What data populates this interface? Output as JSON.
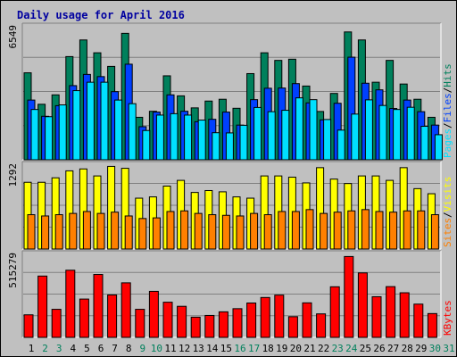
{
  "title": "Daily usage for April 2016",
  "colors": {
    "background": "#c0c0c0",
    "title": "#0000a0",
    "hits": "#00805c",
    "files": "#0040ff",
    "pages": "#00e0ff",
    "visits": "#ffff00",
    "sites": "#ff8000",
    "kbytes": "#ff0000",
    "weekday_label": "#000000",
    "weekend_label": "#00805c",
    "grid": "#808080"
  },
  "chart_data": [
    {
      "type": "bar",
      "name": "hits-files-pages",
      "max_label": "6549",
      "ymax": 6549,
      "right_labels": [
        "Pages",
        "Files",
        "Hits"
      ],
      "x": [
        1,
        2,
        3,
        4,
        5,
        6,
        7,
        8,
        9,
        10,
        11,
        12,
        13,
        14,
        15,
        16,
        17,
        18,
        19,
        20,
        21,
        22,
        23,
        24,
        25,
        26,
        27,
        28,
        29,
        30
      ],
      "series": [
        {
          "name": "Hits",
          "values": [
            4340,
            2770,
            3240,
            5150,
            5980,
            5340,
            4660,
            6310,
            2120,
            2420,
            4190,
            3190,
            2590,
            2930,
            3020,
            2570,
            4300,
            5340,
            4960,
            5020,
            3680,
            2410,
            3310,
            6380,
            5980,
            3870,
            4960,
            3780,
            3020,
            2120
          ]
        },
        {
          "name": "Files",
          "values": [
            2980,
            2170,
            2700,
            3700,
            4260,
            4150,
            3400,
            4770,
            1650,
            2380,
            3240,
            2420,
            1900,
            2020,
            2380,
            1730,
            3000,
            3570,
            3580,
            3800,
            2840,
            1990,
            2820,
            5120,
            3820,
            3490,
            2560,
            2980,
            2400,
            1730
          ]
        },
        {
          "name": "Pages",
          "values": [
            2510,
            2150,
            2740,
            3450,
            3870,
            3870,
            2980,
            2800,
            1460,
            2230,
            2300,
            2230,
            1980,
            1350,
            1340,
            1720,
            2610,
            2400,
            2470,
            3090,
            3000,
            2010,
            1480,
            2280,
            2990,
            2710,
            2510,
            2620,
            1670,
            1250
          ]
        }
      ]
    },
    {
      "type": "bar",
      "name": "visits-sites",
      "max_label": "1292",
      "ymax": 1292,
      "right_labels": [
        "Sites",
        "Visits"
      ],
      "x": [
        1,
        2,
        3,
        4,
        5,
        6,
        7,
        8,
        9,
        10,
        11,
        12,
        13,
        14,
        15,
        16,
        17,
        18,
        19,
        20,
        21,
        22,
        23,
        24,
        25,
        26,
        27,
        28,
        29,
        30
      ],
      "series": [
        {
          "name": "Visits",
          "values": [
            1050,
            1050,
            1120,
            1230,
            1260,
            1150,
            1300,
            1270,
            800,
            820,
            990,
            1080,
            890,
            920,
            900,
            820,
            800,
            1150,
            1150,
            1130,
            1040,
            1280,
            1100,
            1030,
            1150,
            1150,
            1080,
            1280,
            950,
            870
          ]
        },
        {
          "name": "Sites",
          "values": [
            540,
            520,
            540,
            560,
            590,
            560,
            580,
            520,
            480,
            490,
            590,
            600,
            560,
            540,
            530,
            520,
            560,
            540,
            590,
            590,
            620,
            560,
            580,
            600,
            620,
            590,
            580,
            600,
            600,
            540
          ]
        }
      ]
    },
    {
      "type": "bar",
      "name": "kbytes",
      "max_label": "515279",
      "ymax": 515279,
      "right_labels": [
        "KBytes"
      ],
      "x": [
        1,
        2,
        3,
        4,
        5,
        6,
        7,
        8,
        9,
        10,
        11,
        12,
        13,
        14,
        15,
        16,
        17,
        18,
        19,
        20,
        21,
        22,
        23,
        24,
        25,
        26,
        27,
        28,
        29,
        30
      ],
      "series": [
        {
          "name": "KBytes",
          "values": [
            143000,
            389000,
            178000,
            426000,
            243000,
            399000,
            269000,
            346000,
            178000,
            292000,
            223000,
            197000,
            128000,
            139000,
            162000,
            182000,
            218000,
            253000,
            268000,
            131000,
            219000,
            149000,
            321000,
            513000,
            409000,
            258000,
            322000,
            283000,
            211000,
            151000
          ]
        }
      ]
    }
  ],
  "days": [
    "1",
    "2",
    "3",
    "4",
    "5",
    "6",
    "7",
    "8",
    "9",
    "10",
    "11",
    "12",
    "13",
    "14",
    "15",
    "16",
    "17",
    "18",
    "19",
    "20",
    "21",
    "22",
    "23",
    "24",
    "25",
    "26",
    "27",
    "28",
    "29",
    "30",
    "31"
  ],
  "weekend_days": [
    2,
    3,
    9,
    10,
    16,
    17,
    23,
    24,
    30,
    31
  ]
}
